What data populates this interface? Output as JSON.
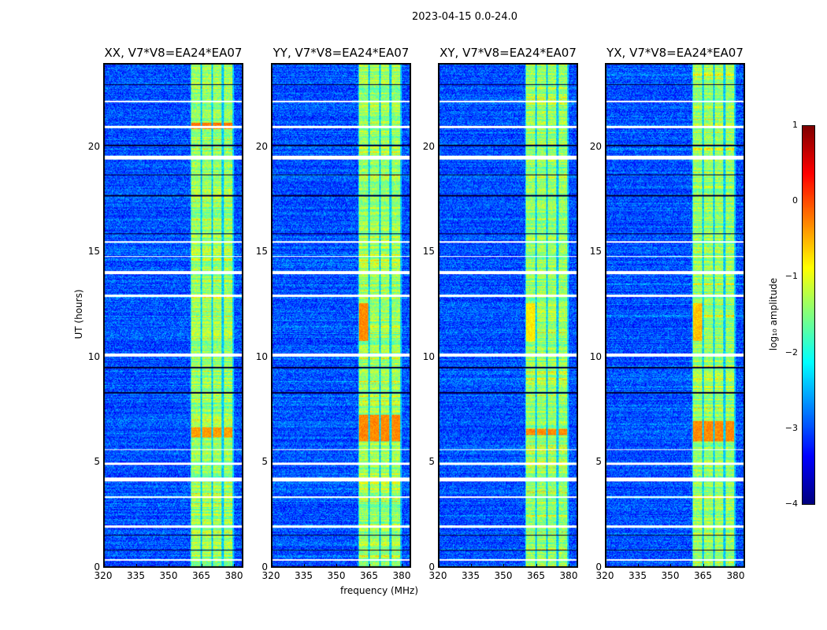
{
  "chart_data": {
    "type": "heatmap",
    "title": "2023-04-15 0.0-24.0",
    "xlabel": "frequency (MHz)",
    "ylabel": "UT (hours)",
    "xlim": [
      320,
      384
    ],
    "ylim": [
      0,
      24
    ],
    "xticks": [
      "320",
      "335",
      "350",
      "365",
      "380"
    ],
    "yticks": [
      "0",
      "5",
      "10",
      "15",
      "20"
    ],
    "xtick_values": [
      320,
      335,
      350,
      365,
      380
    ],
    "ytick_values": [
      0,
      5,
      10,
      15,
      20
    ],
    "panels": [
      {
        "title": "XX, V7*V8=EA24*EA07"
      },
      {
        "title": "YY, V7*V8=EA24*EA07"
      },
      {
        "title": "XY, V7*V8=EA24*EA07"
      },
      {
        "title": "YX, V7*V8=EA24*EA07"
      }
    ],
    "background_log_amp": -3.0,
    "band": {
      "freq": [
        360,
        380
      ],
      "log_amp": -1.4,
      "subband_edges": [
        360,
        365,
        370,
        375,
        380
      ]
    },
    "flagged_hours_white": [
      [
        0.3,
        0.4
      ],
      [
        1.9,
        2.0
      ],
      [
        3.3,
        3.4
      ],
      [
        4.1,
        4.3
      ],
      [
        4.9,
        5.0
      ],
      [
        5.6,
        5.65
      ],
      [
        10.05,
        10.2
      ],
      [
        12.9,
        13.0
      ],
      [
        14.0,
        14.15
      ],
      [
        14.8,
        14.85
      ],
      [
        15.5,
        15.55
      ],
      [
        19.45,
        19.65
      ],
      [
        20.95,
        21.05
      ],
      [
        22.2,
        22.25
      ]
    ],
    "flagged_hours_black": [
      [
        0.8,
        0.85
      ],
      [
        1.5,
        1.55
      ],
      [
        8.3,
        8.35
      ],
      [
        9.5,
        9.55
      ],
      [
        15.9,
        15.95
      ],
      [
        17.7,
        17.75
      ],
      [
        18.7,
        18.75
      ],
      [
        20.1,
        20.15
      ],
      [
        23.0,
        23.05
      ]
    ],
    "hot_spots": [
      {
        "panel": 1,
        "hours": [
          10.8,
          12.6
        ],
        "freq": [
          360,
          365
        ],
        "log_amp": -0.3
      },
      {
        "panel": 2,
        "hours": [
          10.8,
          12.6
        ],
        "freq": [
          360,
          365
        ],
        "log_amp": -0.8
      },
      {
        "panel": 3,
        "hours": [
          10.8,
          12.6
        ],
        "freq": [
          360,
          365
        ],
        "log_amp": -0.6
      },
      {
        "panel": 0,
        "hours": [
          6.2,
          6.7
        ],
        "freq": [
          360,
          380
        ],
        "log_amp": -0.4
      },
      {
        "panel": 1,
        "hours": [
          6.0,
          7.3
        ],
        "freq": [
          360,
          380
        ],
        "log_amp": -0.3
      },
      {
        "panel": 2,
        "hours": [
          6.3,
          6.6
        ],
        "freq": [
          360,
          380
        ],
        "log_amp": -0.3
      },
      {
        "panel": 3,
        "hours": [
          6.0,
          7.0
        ],
        "freq": [
          360,
          380
        ],
        "log_amp": -0.3
      },
      {
        "panel": 0,
        "hours": [
          20.9,
          21.2
        ],
        "freq": [
          360,
          380
        ],
        "log_amp": -0.2
      }
    ],
    "colorbar": {
      "label": "log₁₀ amplitude",
      "range": [
        -4,
        1
      ],
      "ticks": [
        "1",
        "0",
        "−1",
        "−2",
        "−3",
        "−4"
      ],
      "tick_values": [
        1,
        0,
        -1,
        -2,
        -3,
        -4
      ]
    }
  }
}
